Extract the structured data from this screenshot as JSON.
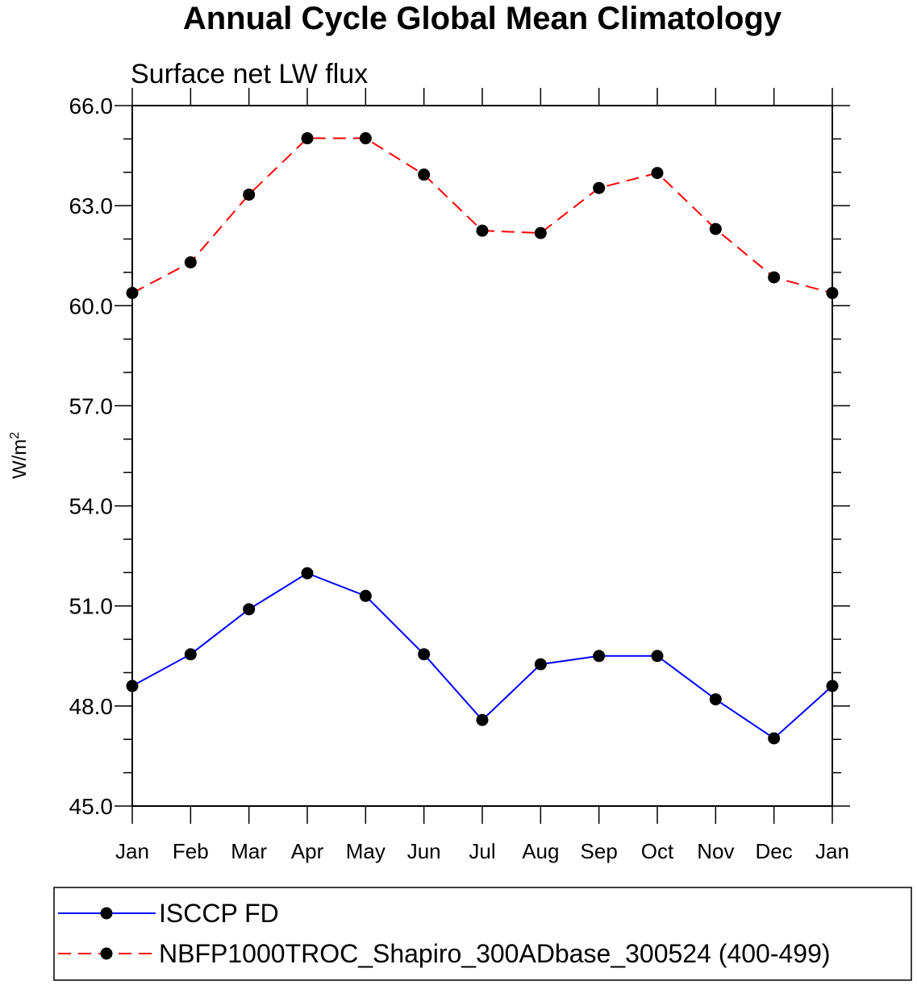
{
  "chart_data": {
    "type": "line",
    "title": "Annual Cycle Global Mean Climatology",
    "subtitle": "Surface net LW flux",
    "xlabel": "",
    "ylabel": "W/m",
    "ylabel_superscript": "2",
    "ylim": [
      45.0,
      66.0
    ],
    "yticks": [
      "45.0",
      "48.0",
      "51.0",
      "54.0",
      "57.0",
      "60.0",
      "63.0",
      "66.0"
    ],
    "ytick_values": [
      45,
      48,
      51,
      54,
      57,
      60,
      63,
      66
    ],
    "categories": [
      "Jan",
      "Feb",
      "Mar",
      "Apr",
      "May",
      "Jun",
      "Jul",
      "Aug",
      "Sep",
      "Oct",
      "Nov",
      "Dec",
      "Jan"
    ],
    "series": [
      {
        "name": "ISCCP FD",
        "color": "#0000ff",
        "dash": "solid",
        "values": [
          48.6,
          49.55,
          50.9,
          51.98,
          51.3,
          49.55,
          47.58,
          49.25,
          49.5,
          49.5,
          48.2,
          47.03,
          48.6
        ]
      },
      {
        "name": "NBFP1000TROC_Shapiro_300ADbase_300524 (400-499)",
        "color": "#ff0000",
        "dash": "dashed",
        "values": [
          60.38,
          61.3,
          63.33,
          65.02,
          65.02,
          63.93,
          62.25,
          62.18,
          63.53,
          63.98,
          62.3,
          60.85,
          60.38
        ]
      }
    ],
    "legend": "bottom"
  }
}
